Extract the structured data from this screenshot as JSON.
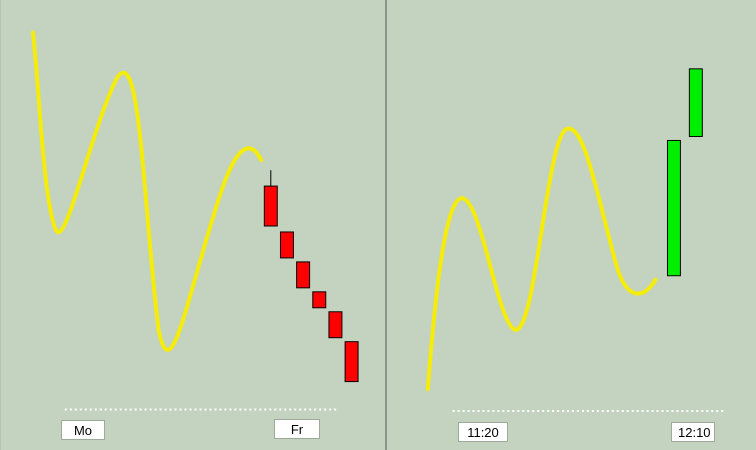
{
  "chart_data": [
    {
      "type": "candlestick",
      "panel": "left",
      "x_labels": [
        "Mo",
        "Fr"
      ],
      "trend_line_color": "#f5ec0a",
      "candle_color": "#ff0000",
      "candles": [
        {
          "open": 0.72,
          "close": 0.52,
          "high": 0.8,
          "low": 0.52
        },
        {
          "open": 0.49,
          "close": 0.36,
          "high": 0.49,
          "low": 0.36
        },
        {
          "open": 0.34,
          "close": 0.21,
          "high": 0.34,
          "low": 0.21
        },
        {
          "open": 0.19,
          "close": 0.11,
          "high": 0.19,
          "low": 0.11
        },
        {
          "open": 0.09,
          "close": -0.04,
          "high": 0.09,
          "low": -0.04
        },
        {
          "open": -0.06,
          "close": -0.26,
          "high": -0.06,
          "low": -0.26
        }
      ]
    },
    {
      "type": "candlestick",
      "panel": "right",
      "x_labels": [
        "11:20",
        "12:10"
      ],
      "trend_line_color": "#f5ec0a",
      "candle_color": "#00ee00",
      "candles": [
        {
          "open": 0.16,
          "close": 0.84,
          "high": 0.84,
          "low": 0.16
        },
        {
          "open": 0.86,
          "close": 1.2,
          "high": 1.2,
          "low": 0.86
        }
      ]
    }
  ],
  "colors": {
    "background": "#c4d3bf",
    "trend_line": "#f5ec0a",
    "bearish": "#ff0000",
    "bullish": "#00ee00",
    "divider": "#8a9687"
  }
}
